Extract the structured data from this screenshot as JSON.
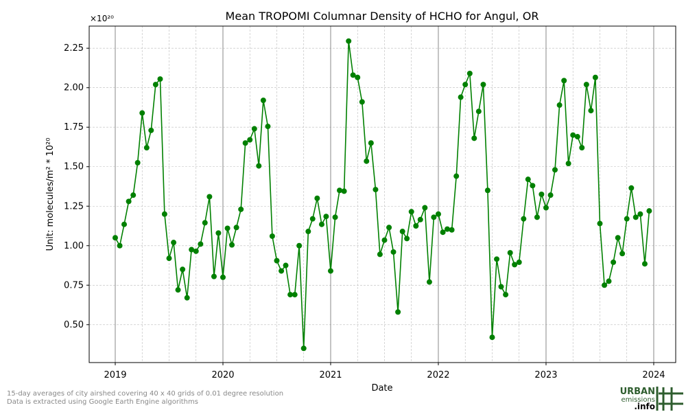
{
  "chart_data": {
    "type": "line",
    "title": "Mean TROPOMI Columnar Density of HCHO for Angul, OR",
    "x_label": "Date",
    "y_label": "Unit: molecules/m² * 10²⁰",
    "y_offset_label": "×10²⁰",
    "color": "#008000",
    "grid": true,
    "x": [
      2019,
      2019.042,
      2019.083,
      2019.125,
      2019.167,
      2019.208,
      2019.25,
      2019.292,
      2019.333,
      2019.375,
      2019.417,
      2019.458,
      2019.5,
      2019.542,
      2019.583,
      2019.625,
      2019.667,
      2019.708,
      2019.75,
      2019.792,
      2019.833,
      2019.875,
      2019.917,
      2019.958,
      2020,
      2020.042,
      2020.083,
      2020.125,
      2020.167,
      2020.208,
      2020.25,
      2020.292,
      2020.333,
      2020.375,
      2020.417,
      2020.458,
      2020.5,
      2020.542,
      2020.583,
      2020.625,
      2020.667,
      2020.708,
      2020.75,
      2020.792,
      2020.833,
      2020.875,
      2020.917,
      2020.958,
      2021,
      2021.042,
      2021.083,
      2021.125,
      2021.167,
      2021.208,
      2021.25,
      2021.292,
      2021.333,
      2021.375,
      2021.417,
      2021.458,
      2021.5,
      2021.542,
      2021.583,
      2021.625,
      2021.667,
      2021.708,
      2021.75,
      2021.792,
      2021.833,
      2021.875,
      2021.917,
      2021.958,
      2022,
      2022.042,
      2022.083,
      2022.125,
      2022.167,
      2022.208,
      2022.25,
      2022.292,
      2022.333,
      2022.375,
      2022.417,
      2022.458,
      2022.5,
      2022.542,
      2022.583,
      2022.625,
      2022.667,
      2022.708,
      2022.75,
      2022.792,
      2022.833,
      2022.875,
      2022.917,
      2022.958,
      2023,
      2023.042,
      2023.083,
      2023.125,
      2023.167,
      2023.208,
      2023.25,
      2023.292,
      2023.333,
      2023.375,
      2023.417,
      2023.458,
      2023.5,
      2023.542,
      2023.583,
      2023.625,
      2023.667,
      2023.708,
      2023.75,
      2023.792,
      2023.833,
      2023.875,
      2023.917,
      2023.958
    ],
    "values": [
      1.05,
      1.0,
      1.135,
      1.28,
      1.32,
      1.525,
      1.84,
      1.62,
      1.73,
      2.02,
      2.055,
      1.2,
      0.92,
      1.02,
      0.72,
      0.85,
      0.67,
      0.975,
      0.965,
      1.01,
      1.145,
      1.31,
      0.805,
      1.08,
      0.8,
      1.11,
      1.005,
      1.115,
      1.23,
      1.65,
      1.67,
      1.74,
      1.505,
      1.92,
      1.755,
      1.06,
      0.905,
      0.84,
      0.875,
      0.69,
      0.69,
      1.0,
      0.35,
      1.09,
      1.17,
      1.3,
      1.135,
      1.185,
      0.84,
      1.18,
      1.35,
      1.345,
      2.295,
      2.08,
      2.065,
      1.91,
      1.535,
      1.65,
      1.355,
      0.945,
      1.035,
      1.115,
      0.96,
      0.58,
      1.09,
      1.045,
      1.215,
      1.125,
      1.165,
      1.24,
      0.77,
      1.18,
      1.2,
      1.085,
      1.105,
      1.1,
      1.44,
      1.94,
      2.02,
      2.09,
      1.68,
      1.85,
      2.02,
      1.35,
      0.42,
      0.915,
      0.74,
      0.69,
      0.955,
      0.88,
      0.895,
      1.17,
      1.42,
      1.38,
      1.18,
      1.325,
      1.24,
      1.32,
      1.48,
      1.89,
      2.045,
      1.52,
      1.7,
      1.69,
      1.62,
      2.02,
      1.855,
      2.065,
      1.14,
      0.75,
      0.775,
      0.895,
      1.05,
      0.95,
      1.17,
      1.365,
      1.18,
      1.2,
      0.885,
      1.22
    ],
    "xlim": [
      2018.758,
      2024.204
    ],
    "xticks": [
      2019,
      2020,
      2021,
      2022,
      2023,
      2024
    ],
    "ylim": [
      0.26,
      2.39
    ],
    "yticks": [
      {
        "value": 0.5,
        "label": "0.50"
      },
      {
        "value": 0.75,
        "label": "0.75"
      },
      {
        "value": 1.0,
        "label": "1.00"
      },
      {
        "value": 1.25,
        "label": "1.25"
      },
      {
        "value": 1.5,
        "label": "1.50"
      },
      {
        "value": 1.75,
        "label": "1.75"
      },
      {
        "value": 2.0,
        "label": "2.00"
      },
      {
        "value": 2.25,
        "label": "2.25"
      }
    ]
  },
  "footer": {
    "lines": [
      "15-day averages of city airshed covering 40 x 40 grids of 0.01 degree resolution",
      "Data is extracted using Google Earth Engine algorithms"
    ]
  },
  "logo": {
    "top": "URBAN",
    "middle": "emissions",
    "bottom": ".info"
  }
}
